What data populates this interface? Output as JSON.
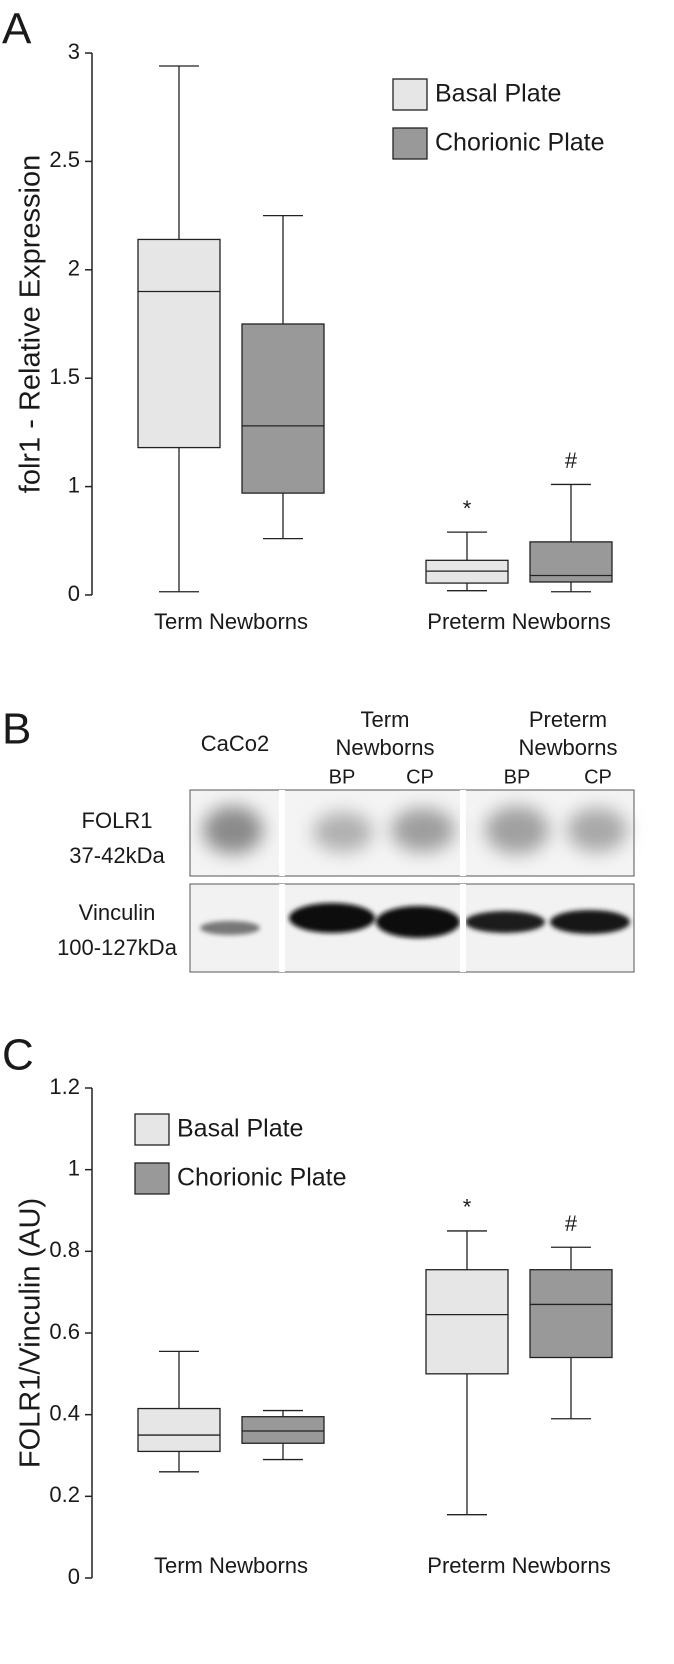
{
  "chart_data": [
    {
      "type": "box",
      "panel": "A",
      "y_label": "folr1 - Relative Expression",
      "categories": [
        "Term Newborns",
        "Preterm Newborns"
      ],
      "series": [
        {
          "name": "Basal Plate",
          "color": "#e6e6e6",
          "values": [
            {
              "min": 0.03,
              "q1": 1.18,
              "median": 1.9,
              "q3": 2.14,
              "max": 2.94
            },
            {
              "min": 0.04,
              "q1": 0.11,
              "median": 0.22,
              "q3": 0.32,
              "max": 0.58
            }
          ],
          "annotations": [
            null,
            "*"
          ]
        },
        {
          "name": "Chorionic Plate",
          "color": "#999999",
          "values": [
            {
              "min": 0.52,
              "q1": 0.94,
              "median": 1.28,
              "q3": 1.75,
              "max": 2.25
            },
            {
              "min": 0.03,
              "q1": 0.12,
              "median": 0.18,
              "q3": 0.49,
              "max": 1.01
            }
          ],
          "annotations": [
            null,
            "#"
          ]
        }
      ],
      "ylim": [
        0,
        3
      ],
      "yticks": [
        0,
        1,
        1.5,
        2,
        2.5,
        3
      ],
      "legend": "upper right"
    },
    {
      "type": "box",
      "panel": "C",
      "y_label": "FOLR1/Vinculin (AU)",
      "categories": [
        "Term Newborns",
        "Preterm Newborns"
      ],
      "series": [
        {
          "name": "Basal Plate",
          "color": "#e6e6e6",
          "values": [
            {
              "min": 0.26,
              "q1": 0.31,
              "median": 0.35,
              "q3": 0.415,
              "max": 0.555
            },
            {
              "min": 0.155,
              "q1": 0.5,
              "median": 0.645,
              "q3": 0.755,
              "max": 0.85
            }
          ],
          "annotations": [
            null,
            "*"
          ]
        },
        {
          "name": "Chorionic Plate",
          "color": "#999999",
          "values": [
            {
              "min": 0.29,
              "q1": 0.33,
              "median": 0.36,
              "q3": 0.395,
              "max": 0.41
            },
            {
              "min": 0.39,
              "q1": 0.54,
              "median": 0.67,
              "q3": 0.755,
              "max": 0.81
            }
          ],
          "annotations": [
            null,
            "#"
          ]
        }
      ],
      "ylim": [
        0,
        1.2
      ],
      "yticks": [
        0,
        0.2,
        0.4,
        0.6,
        0.8,
        1,
        1.2
      ],
      "legend": "upper left"
    }
  ],
  "blot": {
    "panel": "B",
    "groups": [
      {
        "lines": [
          "CaCo2"
        ]
      },
      {
        "lines": [
          "Term",
          "Newborns"
        ],
        "lanes": [
          "BP",
          "CP"
        ]
      },
      {
        "lines": [
          "Preterm",
          "Newborns"
        ],
        "lanes": [
          "BP",
          "CP"
        ]
      }
    ],
    "rows": [
      {
        "lines": [
          "FOLR1",
          "37-42kDa"
        ]
      },
      {
        "lines": [
          "Vinculin",
          "100-127kDa"
        ]
      }
    ]
  }
}
